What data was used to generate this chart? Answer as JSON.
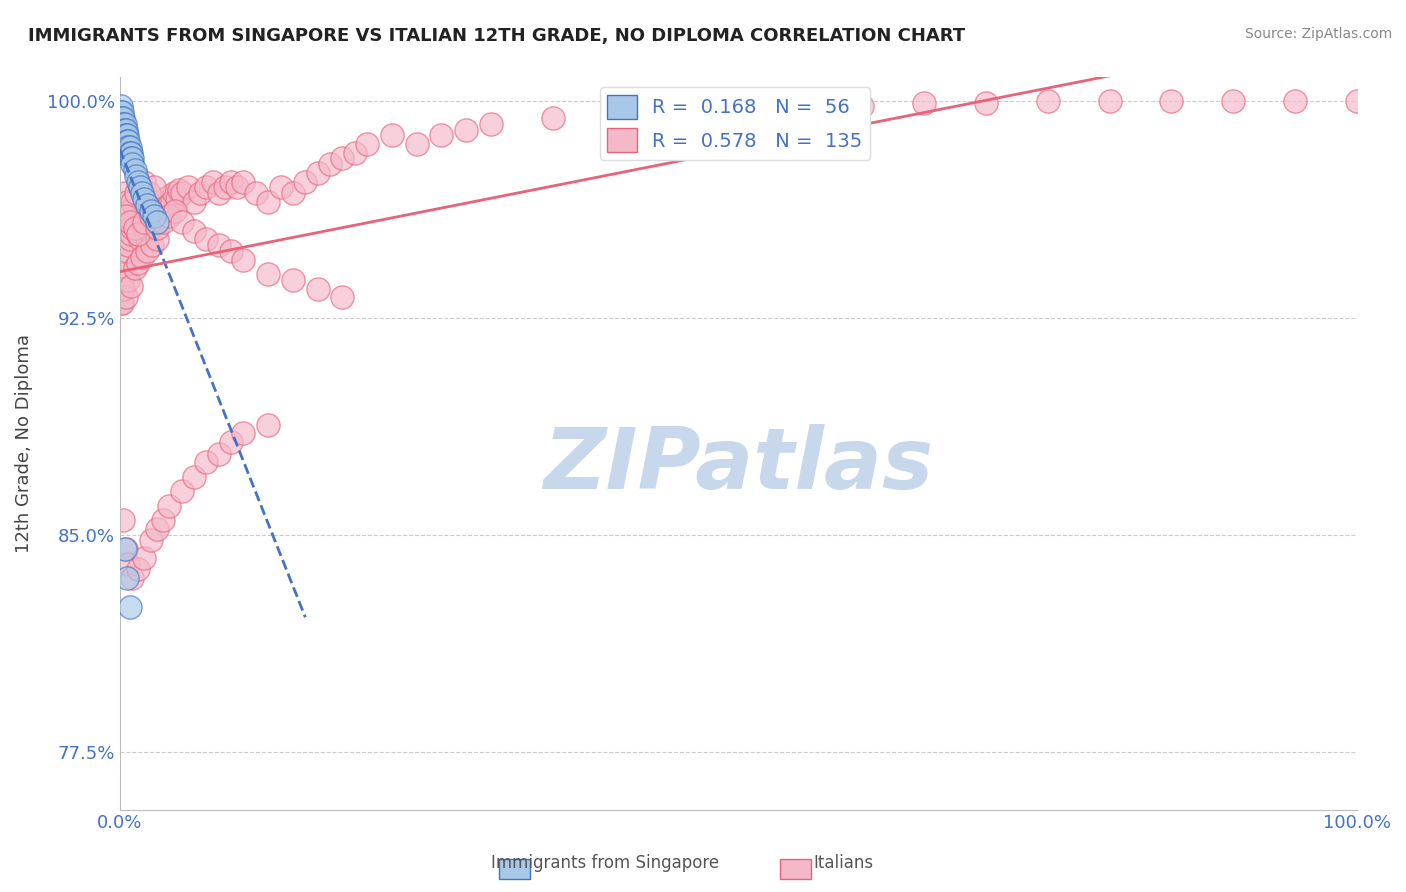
{
  "title": "IMMIGRANTS FROM SINGAPORE VS ITALIAN 12TH GRADE, NO DIPLOMA CORRELATION CHART",
  "source": "Source: ZipAtlas.com",
  "ylabel": "12th Grade, No Diploma",
  "xlim": [
    0.0,
    1.0
  ],
  "ylim": [
    0.755,
    1.008
  ],
  "yticks": [
    0.775,
    0.85,
    0.925,
    1.0
  ],
  "ytick_labels": [
    "77.5%",
    "85.0%",
    "92.5%",
    "100.0%"
  ],
  "xtick_labels": [
    "0.0%",
    "100.0%"
  ],
  "xticks": [
    0.0,
    1.0
  ],
  "singapore_color": "#a8c8e8",
  "italian_color": "#f4b8c8",
  "singapore_edge_color": "#4472c4",
  "italian_edge_color": "#e8637a",
  "singapore_line_color": "#4472c4",
  "italian_line_color": "#e8637a",
  "background_color": "#ffffff",
  "grid_color": "#cccccc",
  "tick_label_color": "#4472c4",
  "watermark_text": "ZIPatlas",
  "watermark_color": "#c8d8ec",
  "legend_R_singapore": "0.168",
  "legend_N_singapore": "56",
  "legend_R_italian": "0.578",
  "legend_N_italian": "135",
  "singapore_x": [
    0.001,
    0.001,
    0.001,
    0.001,
    0.001,
    0.001,
    0.001,
    0.001,
    0.002,
    0.002,
    0.002,
    0.002,
    0.002,
    0.002,
    0.002,
    0.002,
    0.003,
    0.003,
    0.003,
    0.003,
    0.003,
    0.003,
    0.004,
    0.004,
    0.004,
    0.004,
    0.004,
    0.005,
    0.005,
    0.005,
    0.005,
    0.006,
    0.006,
    0.006,
    0.007,
    0.007,
    0.007,
    0.008,
    0.008,
    0.009,
    0.009,
    0.01,
    0.01,
    0.012,
    0.013,
    0.015,
    0.016,
    0.018,
    0.02,
    0.022,
    0.025,
    0.028,
    0.03,
    0.004,
    0.006,
    0.008
  ],
  "singapore_y": [
    0.998,
    0.996,
    0.994,
    0.992,
    0.99,
    0.988,
    0.986,
    0.984,
    0.996,
    0.994,
    0.992,
    0.99,
    0.988,
    0.986,
    0.984,
    0.982,
    0.994,
    0.992,
    0.99,
    0.988,
    0.986,
    0.984,
    0.992,
    0.99,
    0.988,
    0.986,
    0.984,
    0.99,
    0.988,
    0.986,
    0.984,
    0.988,
    0.986,
    0.984,
    0.986,
    0.984,
    0.982,
    0.984,
    0.982,
    0.982,
    0.98,
    0.98,
    0.978,
    0.976,
    0.974,
    0.972,
    0.97,
    0.968,
    0.966,
    0.964,
    0.962,
    0.96,
    0.958,
    0.845,
    0.835,
    0.825
  ],
  "italian_x": [
    0.001,
    0.002,
    0.003,
    0.004,
    0.005,
    0.006,
    0.007,
    0.008,
    0.009,
    0.01,
    0.011,
    0.012,
    0.013,
    0.014,
    0.015,
    0.016,
    0.017,
    0.018,
    0.019,
    0.02,
    0.021,
    0.022,
    0.023,
    0.024,
    0.025,
    0.026,
    0.027,
    0.028,
    0.029,
    0.03,
    0.032,
    0.034,
    0.036,
    0.038,
    0.04,
    0.042,
    0.044,
    0.046,
    0.048,
    0.05,
    0.055,
    0.06,
    0.065,
    0.07,
    0.075,
    0.08,
    0.085,
    0.09,
    0.095,
    0.1,
    0.11,
    0.12,
    0.13,
    0.14,
    0.15,
    0.16,
    0.17,
    0.18,
    0.19,
    0.2,
    0.22,
    0.24,
    0.26,
    0.28,
    0.3,
    0.35,
    0.4,
    0.45,
    0.5,
    0.55,
    0.6,
    0.65,
    0.7,
    0.75,
    0.8,
    0.85,
    0.9,
    0.95,
    1.0,
    0.003,
    0.005,
    0.007,
    0.009,
    0.012,
    0.015,
    0.018,
    0.022,
    0.026,
    0.03,
    0.004,
    0.006,
    0.008,
    0.01,
    0.013,
    0.016,
    0.02,
    0.024,
    0.028,
    0.005,
    0.008,
    0.012,
    0.015,
    0.02,
    0.025,
    0.03,
    0.035,
    0.04,
    0.045,
    0.05,
    0.06,
    0.07,
    0.08,
    0.09,
    0.1,
    0.12,
    0.14,
    0.16,
    0.18,
    0.003,
    0.005,
    0.007,
    0.01,
    0.015,
    0.02,
    0.025,
    0.03,
    0.035,
    0.04,
    0.05,
    0.06,
    0.07,
    0.08,
    0.09,
    0.1,
    0.12
  ],
  "italian_y": [
    0.93,
    0.93,
    0.935,
    0.94,
    0.945,
    0.948,
    0.95,
    0.952,
    0.954,
    0.956,
    0.958,
    0.96,
    0.958,
    0.956,
    0.954,
    0.952,
    0.958,
    0.96,
    0.958,
    0.956,
    0.954,
    0.952,
    0.958,
    0.955,
    0.96,
    0.958,
    0.962,
    0.96,
    0.963,
    0.962,
    0.965,
    0.963,
    0.966,
    0.964,
    0.967,
    0.965,
    0.968,
    0.966,
    0.969,
    0.968,
    0.97,
    0.965,
    0.968,
    0.97,
    0.972,
    0.968,
    0.97,
    0.972,
    0.97,
    0.972,
    0.968,
    0.965,
    0.97,
    0.968,
    0.972,
    0.975,
    0.978,
    0.98,
    0.982,
    0.985,
    0.988,
    0.985,
    0.988,
    0.99,
    0.992,
    0.994,
    0.995,
    0.996,
    0.997,
    0.998,
    0.998,
    0.999,
    0.999,
    1.0,
    1.0,
    1.0,
    1.0,
    1.0,
    1.0,
    0.935,
    0.932,
    0.938,
    0.936,
    0.942,
    0.944,
    0.946,
    0.948,
    0.95,
    0.952,
    0.968,
    0.965,
    0.962,
    0.965,
    0.968,
    0.97,
    0.972,
    0.968,
    0.97,
    0.96,
    0.958,
    0.956,
    0.954,
    0.958,
    0.96,
    0.956,
    0.958,
    0.96,
    0.962,
    0.958,
    0.955,
    0.952,
    0.95,
    0.948,
    0.945,
    0.94,
    0.938,
    0.935,
    0.932,
    0.855,
    0.845,
    0.84,
    0.835,
    0.838,
    0.842,
    0.848,
    0.852,
    0.855,
    0.86,
    0.865,
    0.87,
    0.875,
    0.878,
    0.882,
    0.885,
    0.888
  ]
}
